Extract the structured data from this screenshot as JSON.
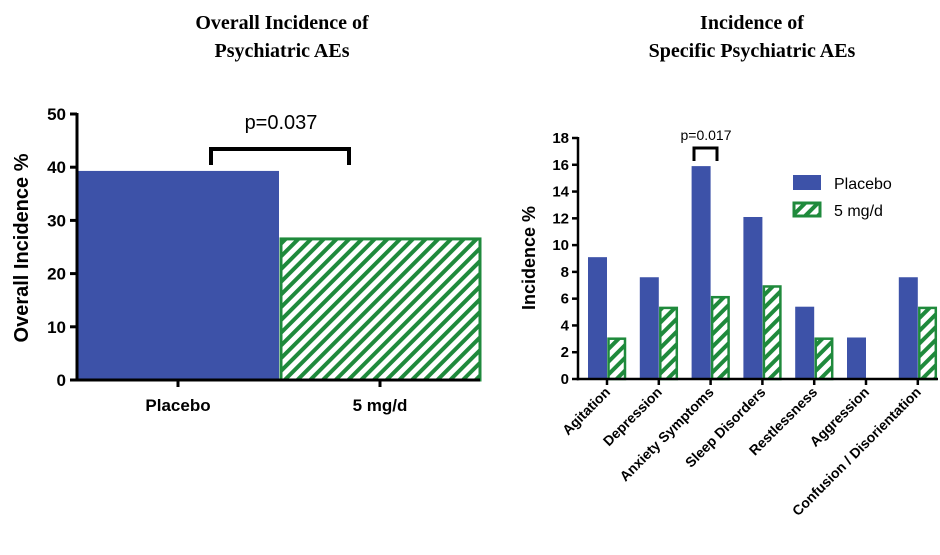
{
  "colors": {
    "placebo": "#3d52a8",
    "treatment": "#1f8a3c"
  },
  "chart_data": [
    {
      "type": "bar",
      "title_line1": "Overall Incidence of",
      "title_line2": "Psychiatric AEs",
      "ylabel": "Overall Incidence %",
      "xlabel": "",
      "ylim": [
        0,
        50
      ],
      "yticks": [
        "0",
        "10",
        "20",
        "30",
        "40",
        "50"
      ],
      "categories": [
        "Placebo",
        "5 mg/d"
      ],
      "values": [
        39.3,
        26.8
      ],
      "annotation": "p=0.037"
    },
    {
      "type": "bar",
      "title_line1": "Incidence of",
      "title_line2": "Specific Psychiatric AEs",
      "ylabel": "Incidence %",
      "xlabel": "",
      "ylim": [
        0,
        18
      ],
      "yticks": [
        "0",
        "2",
        "4",
        "6",
        "8",
        "10",
        "12",
        "14",
        "16",
        "18"
      ],
      "categories": [
        "Agitation",
        "Depression",
        "Anxiety Symptoms",
        "Sleep Disorders",
        "Restlessness",
        "Aggression",
        "Confusion / Disorientation"
      ],
      "series": [
        {
          "name": "Placebo",
          "values": [
            9.1,
            7.6,
            15.9,
            12.1,
            5.4,
            3.1,
            7.6
          ]
        },
        {
          "name": "5 mg/d",
          "values": [
            3.1,
            5.4,
            6.2,
            7.0,
            3.1,
            0,
            5.4
          ]
        }
      ],
      "annotation": "p=0.017",
      "legend_position": "top-right"
    }
  ]
}
